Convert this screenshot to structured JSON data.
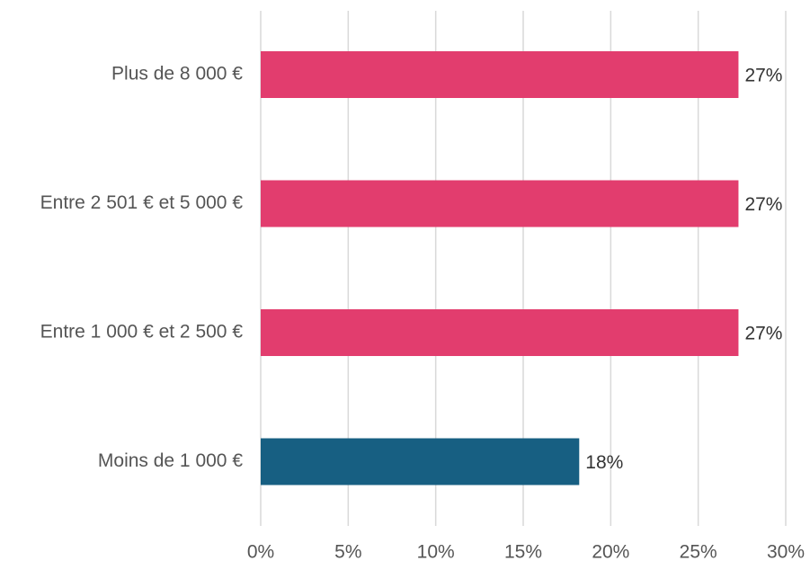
{
  "chart_data": {
    "type": "bar",
    "orientation": "horizontal",
    "categories": [
      "Plus de 8 000 €",
      "Entre 2 501 € et 5 000 €",
      "Entre 1 000 € et 2 500 €",
      "Moins de 1 000 €"
    ],
    "values": [
      27.3,
      27.3,
      27.3,
      18.2
    ],
    "value_labels": [
      "27%",
      "27%",
      "27%",
      "18%"
    ],
    "colors": [
      "#e23d6e",
      "#e23d6e",
      "#e23d6e",
      "#175f82"
    ],
    "xlim": [
      0,
      30
    ],
    "xticks": [
      {
        "value": 0,
        "label": "0%"
      },
      {
        "value": 5,
        "label": "5%"
      },
      {
        "value": 10,
        "label": "10%"
      },
      {
        "value": 15,
        "label": "15%"
      },
      {
        "value": 20,
        "label": "20%"
      },
      {
        "value": 25,
        "label": "25%"
      },
      {
        "value": 30,
        "label": "30%"
      }
    ],
    "grid": true
  }
}
